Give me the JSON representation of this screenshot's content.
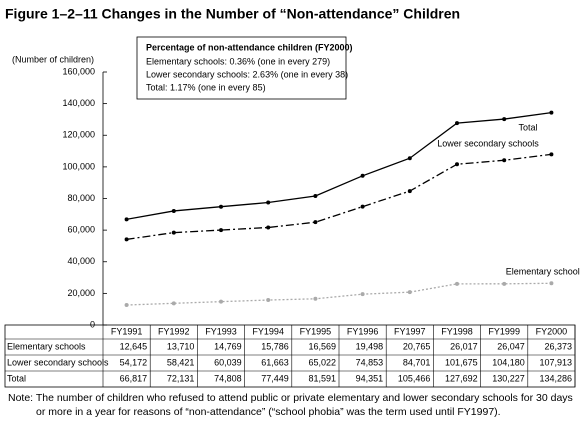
{
  "chart_data": {
    "type": "line",
    "title": "Figure 1–2–11  Changes in the Number of “Non-attendance” Children",
    "y_axis_label": "(Number of children)",
    "info_box": {
      "title": "Percentage of non-attendance children (FY2000)",
      "lines": [
        "Elementary schools: 0.36% (one in every 279)",
        "Lower secondary schools: 2.63% (one in every 38)",
        "Total: 1.17% (one in every 85)"
      ]
    },
    "categories": [
      "FY1991",
      "FY1992",
      "FY1993",
      "FY1994",
      "FY1995",
      "FY1996",
      "FY1997",
      "FY1998",
      "FY1999",
      "FY2000"
    ],
    "series": [
      {
        "name": "Elementary schools",
        "color": "#aaaaaa",
        "line_style": "dotted",
        "values": [
          12645,
          13710,
          14769,
          15786,
          16569,
          19498,
          20765,
          26017,
          26047,
          26373
        ],
        "value_labels": [
          "12,645",
          "13,710",
          "14,769",
          "15,786",
          "16,569",
          "19,498",
          "20,765",
          "26,017",
          "26,047",
          "26,373"
        ]
      },
      {
        "name": "Lower secondary schools",
        "color": "#000000",
        "line_style": "dashdot",
        "values": [
          54172,
          58421,
          60039,
          61663,
          65022,
          74853,
          84701,
          101675,
          104180,
          107913
        ],
        "value_labels": [
          "54,172",
          "58,421",
          "60,039",
          "61,663",
          "65,022",
          "74,853",
          "84,701",
          "101,675",
          "104,180",
          "107,913"
        ]
      },
      {
        "name": "Total",
        "color": "#000000",
        "line_style": "solid",
        "values": [
          66817,
          72131,
          74808,
          77449,
          81591,
          94351,
          105466,
          127692,
          130227,
          134286
        ],
        "value_labels": [
          "66,817",
          "72,131",
          "74,808",
          "77,449",
          "81,591",
          "94,351",
          "105,466",
          "127,692",
          "130,227",
          "134,286"
        ]
      }
    ],
    "ylim": [
      0,
      160000
    ],
    "yticks": [
      0,
      {
        "value": 20000,
        "label": "20,000"
      },
      {
        "value": 40000,
        "label": "40,000"
      },
      {
        "value": 60000,
        "label": "60,000"
      },
      {
        "value": 80000,
        "label": "80,000"
      },
      {
        "value": 100000,
        "label": "100,000"
      },
      {
        "value": 120000,
        "label": "120,000"
      },
      {
        "value": 140000,
        "label": "140,000"
      },
      {
        "value": 160000,
        "label": "160,000"
      }
    ],
    "grid": false,
    "note": "Note: The number of children who refused to attend public or private elementary and lower secondary schools for 30 days or more in a year for reasons of “non-attendance” (“school phobia” was the term used until FY1997)."
  }
}
